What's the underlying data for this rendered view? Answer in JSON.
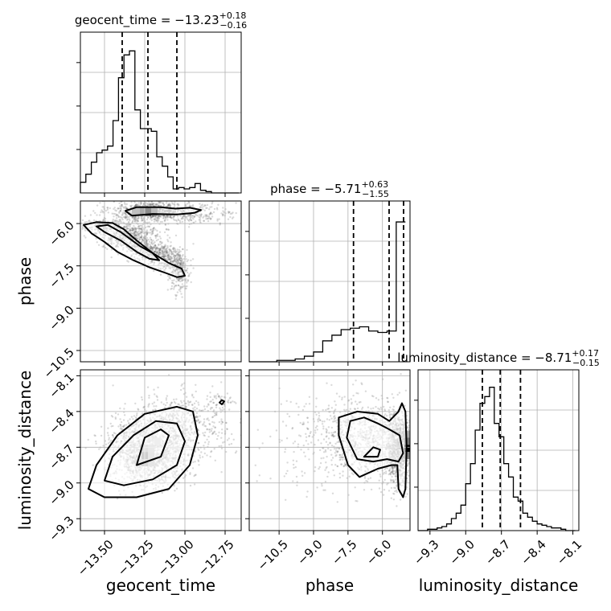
{
  "figure": {
    "background": "#ffffff",
    "mark_color": "#000000",
    "grid_color": "#b0b0b0",
    "scatter_color": "#555555"
  },
  "chart_data": [
    {
      "id": "hist-geocent_time",
      "type": "bar",
      "title": {
        "name": "geocent_time",
        "median": "−13.23",
        "plus": "+0.18",
        "minus": "−0.16"
      },
      "x": [
        -13.633,
        -13.599,
        -13.565,
        -13.532,
        -13.498,
        -13.464,
        -13.43,
        -13.396,
        -13.362,
        -13.328,
        -13.294,
        -13.26,
        -13.226,
        -13.192,
        -13.158,
        -13.124,
        -13.09,
        -13.056,
        -13.022,
        -12.988,
        -12.954,
        -12.92,
        -12.886,
        -12.852,
        -12.818,
        -12.784,
        -12.75,
        -12.716,
        -12.682
      ],
      "values": [
        0.08,
        0.14,
        0.23,
        0.3,
        0.32,
        0.35,
        0.54,
        0.86,
        1.03,
        1.06,
        0.62,
        0.48,
        0.48,
        0.46,
        0.27,
        0.2,
        0.12,
        0.03,
        0.04,
        0.03,
        0.04,
        0.07,
        0.02,
        0.01,
        0,
        0,
        0,
        0,
        0
      ],
      "quantiles": [
        -13.39,
        -13.23,
        -13.05
      ],
      "xlim": [
        -13.65,
        -12.65
      ],
      "xticks": [
        -13.5,
        -13.25,
        -13.0,
        -12.75
      ],
      "xtick_labels": [
        "−13.50",
        "−13.25",
        "−13.00",
        "−12.75"
      ],
      "ylim": [
        0,
        1.2
      ]
    },
    {
      "id": "hist-phase",
      "type": "bar",
      "title": {
        "name": "phase",
        "median": "−5.71",
        "plus": "+0.63",
        "minus": "−1.55"
      },
      "x": [
        -11.6,
        -11.2,
        -10.8,
        -10.4,
        -10.0,
        -9.6,
        -9.2,
        -8.8,
        -8.4,
        -8.0,
        -7.6,
        -7.2,
        -6.8,
        -6.4,
        -6.0,
        -5.6,
        -5.2
      ],
      "values": [
        0,
        0,
        0,
        0.01,
        0.01,
        0.02,
        0.04,
        0.07,
        0.15,
        0.19,
        0.23,
        0.24,
        0.25,
        0.22,
        0.21,
        0.22,
        1.0
      ],
      "quantiles": [
        -7.26,
        -5.71,
        -5.08
      ],
      "xlim": [
        -11.8,
        -4.8
      ],
      "xticks": [
        -10.5,
        -9.0,
        -7.5,
        -6.0
      ],
      "xtick_labels": [
        "−10.5",
        "−9.0",
        "−7.5",
        "−6.0"
      ],
      "ylim": [
        0,
        1.15
      ]
    },
    {
      "id": "hist-luminosity_distance",
      "type": "bar",
      "title": {
        "name": "luminosity_distance",
        "median": "−8.71",
        "plus": "+0.17",
        "minus": "−0.15"
      },
      "x": [
        -9.38,
        -9.34,
        -9.3,
        -9.26,
        -9.22,
        -9.18,
        -9.14,
        -9.1,
        -9.06,
        -9.02,
        -8.98,
        -8.94,
        -8.9,
        -8.86,
        -8.82,
        -8.78,
        -8.74,
        -8.7,
        -8.66,
        -8.62,
        -8.58,
        -8.54,
        -8.5,
        -8.46,
        -8.42,
        -8.38,
        -8.34,
        -8.3,
        -8.26,
        -8.22,
        -8.18,
        -8.14,
        -8.1
      ],
      "values": [
        0,
        0,
        0.01,
        0.01,
        0.02,
        0.03,
        0.05,
        0.09,
        0.13,
        0.19,
        0.35,
        0.5,
        0.75,
        0.95,
        1.0,
        1.07,
        0.8,
        0.7,
        0.5,
        0.4,
        0.25,
        0.22,
        0.13,
        0.1,
        0.07,
        0.05,
        0.04,
        0.03,
        0.02,
        0.02,
        0.01,
        0,
        0
      ],
      "quantiles": [
        -8.86,
        -8.71,
        -8.54
      ],
      "xlim": [
        -9.4,
        -8.05
      ],
      "xticks": [
        -9.3,
        -9.0,
        -8.7,
        -8.4,
        -8.1
      ],
      "xtick_labels": [
        "−9.3",
        "−9.0",
        "−8.7",
        "−8.4",
        "−8.1"
      ],
      "ylim": [
        0,
        1.2
      ]
    },
    {
      "id": "joint-geocent_time-phase",
      "type": "scatter",
      "x_param": "geocent_time",
      "y_param": "phase",
      "xlim": [
        -13.65,
        -12.65
      ],
      "ylim": [
        -10.9,
        -5.2
      ],
      "yticks": [
        -6.0,
        -7.5,
        -9.0,
        -10.5
      ],
      "ytick_labels": [
        "−6.0",
        "−7.5",
        "−9.0",
        "−10.5"
      ],
      "clusters": [
        {
          "x": -13.22,
          "y": -5.55,
          "sx": 0.12,
          "sy": 0.18,
          "n": 700
        },
        {
          "x": -12.96,
          "y": -5.65,
          "sx": 0.15,
          "sy": 0.2,
          "n": 250
        },
        {
          "x": -13.45,
          "y": -6.1,
          "sx": 0.12,
          "sy": 0.18,
          "n": 250
        },
        {
          "x": -13.33,
          "y": -6.5,
          "sx": 0.09,
          "sy": 0.2,
          "n": 400
        },
        {
          "x": -13.2,
          "y": -7.0,
          "sx": 0.08,
          "sy": 0.2,
          "n": 350
        },
        {
          "x": -13.08,
          "y": -7.35,
          "sx": 0.05,
          "sy": 0.2,
          "n": 220
        },
        {
          "x": -13.03,
          "y": -7.9,
          "sx": 0.03,
          "sy": 0.35,
          "n": 150
        }
      ],
      "heat_cells": [
        {
          "x": [
            -13.33,
            -13.28
          ],
          "y": [
            -5.72,
            -5.45
          ],
          "level": 0.55
        },
        {
          "x": [
            -13.28,
            -13.25
          ],
          "y": [
            -5.72,
            -5.45
          ],
          "level": 0.75
        },
        {
          "x": [
            -13.25,
            -13.21
          ],
          "y": [
            -5.72,
            -5.45
          ],
          "level": 1.0
        },
        {
          "x": [
            -13.21,
            -13.17
          ],
          "y": [
            -5.72,
            -5.45
          ],
          "level": 0.6
        }
      ],
      "contours": [
        [
          [
            -13.37,
            -5.55
          ],
          [
            -13.3,
            -5.42
          ],
          [
            -13.15,
            -5.42
          ],
          [
            -13.06,
            -5.47
          ],
          [
            -12.97,
            -5.44
          ],
          [
            -12.9,
            -5.52
          ],
          [
            -12.94,
            -5.62
          ],
          [
            -13.05,
            -5.68
          ],
          [
            -13.2,
            -5.66
          ],
          [
            -13.33,
            -5.72
          ],
          [
            -13.37,
            -5.55
          ]
        ],
        [
          [
            -13.63,
            -6.05
          ],
          [
            -13.55,
            -5.95
          ],
          [
            -13.45,
            -5.98
          ],
          [
            -13.38,
            -6.2
          ],
          [
            -13.3,
            -6.6
          ],
          [
            -13.2,
            -7.05
          ],
          [
            -13.1,
            -7.4
          ],
          [
            -13.02,
            -7.6
          ],
          [
            -13.0,
            -7.85
          ],
          [
            -13.05,
            -7.9
          ],
          [
            -13.12,
            -7.75
          ],
          [
            -13.22,
            -7.55
          ],
          [
            -13.32,
            -7.3
          ],
          [
            -13.42,
            -7.0
          ],
          [
            -13.5,
            -6.65
          ],
          [
            -13.58,
            -6.35
          ],
          [
            -13.63,
            -6.05
          ]
        ],
        [
          [
            -13.55,
            -6.1
          ],
          [
            -13.48,
            -6.05
          ],
          [
            -13.4,
            -6.3
          ],
          [
            -13.28,
            -6.8
          ],
          [
            -13.2,
            -7.05
          ],
          [
            -13.16,
            -7.3
          ],
          [
            -13.22,
            -7.25
          ],
          [
            -13.3,
            -7.0
          ],
          [
            -13.4,
            -6.6
          ],
          [
            -13.5,
            -6.3
          ],
          [
            -13.55,
            -6.1
          ]
        ]
      ]
    },
    {
      "id": "joint-geocent_time-luminosity_distance",
      "type": "scatter",
      "x_param": "geocent_time",
      "y_param": "luminosity_distance",
      "xlim": [
        -13.65,
        -12.65
      ],
      "ylim": [
        -9.4,
        -8.05
      ],
      "xticks": [
        -13.5,
        -13.25,
        -13.0,
        -12.75
      ],
      "xtick_labels": [
        "−13.50",
        "−13.25",
        "−13.00",
        "−12.75"
      ],
      "yticks": [
        -8.1,
        -8.4,
        -8.7,
        -9.0,
        -9.3
      ],
      "ytick_labels": [
        "−8.1",
        "−8.4",
        "−8.7",
        "−9.0",
        "−9.3"
      ],
      "clusters": [
        {
          "x": -13.22,
          "y": -8.72,
          "sx": 0.12,
          "sy": 0.14,
          "n": 1800
        },
        {
          "x": -13.0,
          "y": -8.5,
          "sx": 0.15,
          "sy": 0.13,
          "n": 500
        },
        {
          "x": -12.78,
          "y": -8.33,
          "sx": 0.04,
          "sy": 0.04,
          "n": 40
        }
      ],
      "heat_cells": [
        {
          "x": [
            -13.27,
            -13.23
          ],
          "y": [
            -8.74,
            -8.68
          ],
          "level": 0.6
        },
        {
          "x": [
            -13.23,
            -13.19
          ],
          "y": [
            -8.74,
            -8.68
          ],
          "level": 0.45
        },
        {
          "x": [
            -13.27,
            -13.23
          ],
          "y": [
            -8.8,
            -8.74
          ],
          "level": 1.0
        },
        {
          "x": [
            -13.23,
            -13.19
          ],
          "y": [
            -8.8,
            -8.74
          ],
          "level": 0.5
        },
        {
          "x": [
            -13.31,
            -13.27
          ],
          "y": [
            -8.86,
            -8.8
          ],
          "level": 0.4
        },
        {
          "x": [
            -13.27,
            -13.23
          ],
          "y": [
            -8.86,
            -8.8
          ],
          "level": 0.55
        },
        {
          "x": [
            -13.23,
            -13.19
          ],
          "y": [
            -8.86,
            -8.8
          ],
          "level": 0.35
        },
        {
          "x": [
            -13.19,
            -13.15
          ],
          "y": [
            -8.68,
            -8.62
          ],
          "level": 0.35
        }
      ],
      "contours": [
        [
          [
            -13.6,
            -9.05
          ],
          [
            -13.55,
            -8.85
          ],
          [
            -13.42,
            -8.6
          ],
          [
            -13.25,
            -8.42
          ],
          [
            -13.05,
            -8.36
          ],
          [
            -12.95,
            -8.4
          ],
          [
            -12.92,
            -8.6
          ],
          [
            -12.97,
            -8.85
          ],
          [
            -13.1,
            -9.05
          ],
          [
            -13.3,
            -9.12
          ],
          [
            -13.5,
            -9.12
          ],
          [
            -13.6,
            -9.05
          ]
        ],
        [
          [
            -13.5,
            -8.98
          ],
          [
            -13.45,
            -8.78
          ],
          [
            -13.32,
            -8.6
          ],
          [
            -13.18,
            -8.48
          ],
          [
            -13.05,
            -8.5
          ],
          [
            -13.0,
            -8.65
          ],
          [
            -13.05,
            -8.85
          ],
          [
            -13.2,
            -8.97
          ],
          [
            -13.38,
            -9.02
          ],
          [
            -13.5,
            -8.98
          ]
        ],
        [
          [
            -13.3,
            -8.85
          ],
          [
            -13.25,
            -8.62
          ],
          [
            -13.15,
            -8.55
          ],
          [
            -13.1,
            -8.6
          ],
          [
            -13.15,
            -8.78
          ],
          [
            -13.3,
            -8.85
          ]
        ],
        [
          [
            -12.785,
            -8.325
          ],
          [
            -12.77,
            -8.305
          ],
          [
            -12.755,
            -8.315
          ],
          [
            -12.77,
            -8.34
          ],
          [
            -12.785,
            -8.325
          ]
        ]
      ]
    },
    {
      "id": "joint-phase-luminosity_distance",
      "type": "scatter",
      "x_param": "phase",
      "y_param": "luminosity_distance",
      "xlim": [
        -11.8,
        -4.8
      ],
      "ylim": [
        -9.4,
        -8.05
      ],
      "xticks": [
        -10.5,
        -9.0,
        -7.5,
        -6.0
      ],
      "xtick_labels": [
        "−10.5",
        "−9.0",
        "−7.5",
        "−6.0"
      ],
      "clusters": [
        {
          "x": -5.3,
          "y": -8.72,
          "sx": 0.25,
          "sy": 0.16,
          "n": 900
        },
        {
          "x": -6.7,
          "y": -8.65,
          "sx": 1.0,
          "sy": 0.16,
          "n": 900
        },
        {
          "x": -8.6,
          "y": -8.65,
          "sx": 1.2,
          "sy": 0.2,
          "n": 200
        }
      ],
      "heat_cells": [
        {
          "x": [
            -5.05,
            -4.8
          ],
          "y": [
            -8.62,
            -8.56
          ],
          "level": 0.35
        },
        {
          "x": [
            -5.05,
            -4.8
          ],
          "y": [
            -8.68,
            -8.62
          ],
          "level": 0.55
        },
        {
          "x": [
            -5.05,
            -4.8
          ],
          "y": [
            -8.74,
            -8.68
          ],
          "level": 1.0
        },
        {
          "x": [
            -5.05,
            -4.8
          ],
          "y": [
            -8.8,
            -8.74
          ],
          "level": 0.5
        }
      ],
      "contours": [
        [
          [
            -7.9,
            -8.6
          ],
          [
            -7.9,
            -8.45
          ],
          [
            -7.1,
            -8.4
          ],
          [
            -6.2,
            -8.42
          ],
          [
            -5.7,
            -8.48
          ],
          [
            -5.3,
            -8.4
          ],
          [
            -5.15,
            -8.33
          ],
          [
            -5.0,
            -8.4
          ],
          [
            -4.95,
            -8.7
          ],
          [
            -5.0,
            -9.05
          ],
          [
            -5.1,
            -9.12
          ],
          [
            -5.3,
            -9.05
          ],
          [
            -5.35,
            -8.85
          ],
          [
            -5.6,
            -8.85
          ],
          [
            -6.2,
            -8.88
          ],
          [
            -7.0,
            -8.95
          ],
          [
            -7.5,
            -8.85
          ],
          [
            -7.9,
            -8.6
          ]
        ],
        [
          [
            -7.55,
            -8.62
          ],
          [
            -7.4,
            -8.48
          ],
          [
            -6.8,
            -8.45
          ],
          [
            -6.2,
            -8.5
          ],
          [
            -5.7,
            -8.55
          ],
          [
            -5.25,
            -8.6
          ],
          [
            -5.1,
            -8.75
          ],
          [
            -5.3,
            -8.82
          ],
          [
            -5.8,
            -8.8
          ],
          [
            -6.4,
            -8.82
          ],
          [
            -7.1,
            -8.8
          ],
          [
            -7.55,
            -8.62
          ]
        ],
        [
          [
            -6.8,
            -8.78
          ],
          [
            -6.4,
            -8.7
          ],
          [
            -6.1,
            -8.72
          ],
          [
            -6.2,
            -8.78
          ],
          [
            -6.8,
            -8.78
          ]
        ]
      ]
    }
  ],
  "axis_labels": {
    "bottom": [
      "geocent_time",
      "phase",
      "luminosity_distance"
    ],
    "left": [
      "phase",
      "luminosity_distance"
    ]
  }
}
